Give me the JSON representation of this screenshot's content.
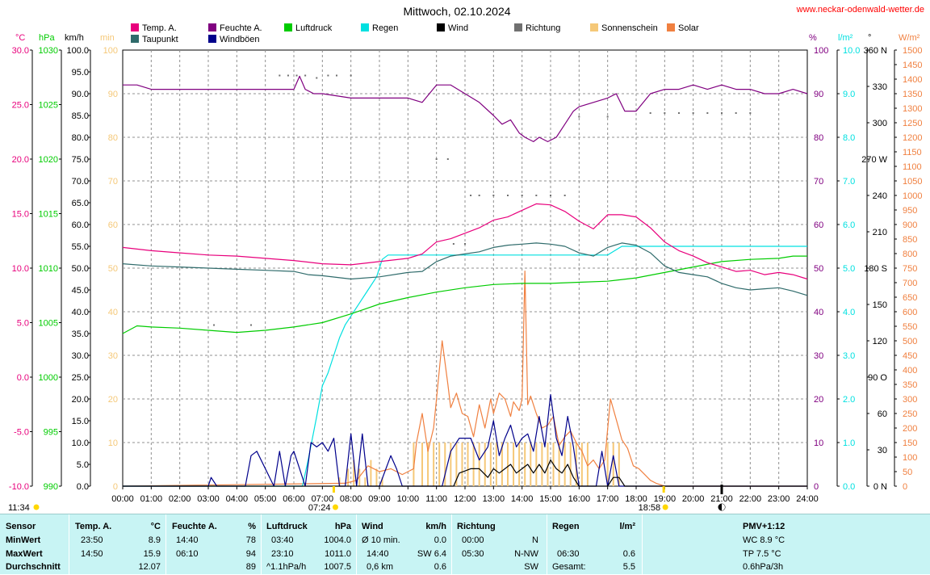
{
  "header": {
    "title": "Mittwoch, 02.10.2024",
    "url": "www.neckar-odenwald-wetter.de"
  },
  "colors": {
    "temp": "#e8007c",
    "feuchte": "#800080",
    "taupunkt": "#2f6b6b",
    "windboeen": "#00008b",
    "luftdruck": "#00cc00",
    "regen": "#00e0e0",
    "wind": "#000000",
    "richtung": "#707070",
    "sonnenschein": "#f5c878",
    "solar": "#f08040"
  },
  "legend": [
    {
      "label": "Temp. A.",
      "color": "#e8007c"
    },
    {
      "label": "Taupunkt",
      "color": "#2f6b6b"
    },
    {
      "label": "Feuchte A.",
      "color": "#800080"
    },
    {
      "label": "Windböen",
      "color": "#00008b"
    },
    {
      "label": "Luftdruck",
      "color": "#00cc00"
    },
    {
      "label": "Regen",
      "color": "#00e0e0"
    },
    {
      "label": "Wind",
      "color": "#000000"
    },
    {
      "label": "Richtung",
      "color": "#707070"
    },
    {
      "label": "Sonnenschein",
      "color": "#f5c878"
    },
    {
      "label": "Solar",
      "color": "#f08040"
    }
  ],
  "chart_data": {
    "type": "line",
    "x_unit": "hour",
    "xlim": [
      0,
      24
    ],
    "x_ticks": [
      "00:00",
      "01:00",
      "02:00",
      "03:00",
      "04:00",
      "05:00",
      "06:00",
      "07:00",
      "08:00",
      "09:00",
      "10:00",
      "11:00",
      "12:00",
      "13:00",
      "14:00",
      "15:00",
      "16:00",
      "17:00",
      "18:00",
      "19:00",
      "20:00",
      "21:00",
      "22:00",
      "23:00",
      "24:00"
    ],
    "axes": {
      "temp": {
        "unit": "°C",
        "range": [
          -10,
          30
        ],
        "ticks": [
          "30.0",
          "25.0",
          "20.0",
          "15.0",
          "10.0",
          "5.0",
          "0.0",
          "-5.0",
          "-10.0"
        ],
        "color": "#e8007c"
      },
      "pressure": {
        "unit": "hPa",
        "range": [
          990,
          1030
        ],
        "ticks": [
          "1030",
          "1025",
          "1020",
          "1015",
          "1010",
          "1005",
          "1000",
          "995",
          "990"
        ],
        "color": "#00cc00"
      },
      "wind": {
        "unit": "km/h",
        "range": [
          0,
          100
        ],
        "ticks": [
          "100.0",
          "95.0",
          "90.0",
          "85.0",
          "80.0",
          "75.0",
          "70.0",
          "65.0",
          "60.0",
          "55.0",
          "50.0",
          "45.0",
          "40.0",
          "35.0",
          "30.0",
          "25.0",
          "20.0",
          "15.0",
          "10.0",
          "5.0",
          "0.0"
        ],
        "color": "#000000"
      },
      "sunshine": {
        "unit": "min",
        "range": [
          0,
          100
        ],
        "ticks": [
          "100",
          "90",
          "80",
          "70",
          "60",
          "50",
          "40",
          "30",
          "20",
          "10",
          "0"
        ],
        "color": "#f5c878"
      },
      "humidity": {
        "unit": "%",
        "range": [
          0,
          100
        ],
        "ticks": [
          "100",
          "90",
          "80",
          "70",
          "60",
          "50",
          "40",
          "30",
          "20",
          "10",
          "0"
        ],
        "color": "#800080"
      },
      "rain": {
        "unit": "l/m²",
        "range": [
          0,
          10
        ],
        "ticks": [
          "10.0",
          "9.0",
          "8.0",
          "7.0",
          "6.0",
          "5.0",
          "4.0",
          "3.0",
          "2.0",
          "1.0",
          "0.0"
        ],
        "color": "#00e0e0"
      },
      "direction": {
        "unit": "°",
        "range": [
          0,
          360
        ],
        "ticks": [
          "360 N",
          "330",
          "300",
          "270 W",
          "240",
          "210",
          "180 S",
          "150",
          "120",
          "90 O",
          "60",
          "30",
          "0 N"
        ],
        "color": "#000000"
      },
      "solar": {
        "unit": "W/m²",
        "range": [
          0,
          1500
        ],
        "ticks": [
          "1500",
          "1450",
          "1400",
          "1350",
          "1300",
          "1250",
          "1200",
          "1150",
          "1100",
          "1050",
          "1000",
          "950",
          "900",
          "850",
          "800",
          "750",
          "700",
          "650",
          "600",
          "550",
          "500",
          "450",
          "400",
          "350",
          "300",
          "250",
          "200",
          "150",
          "100",
          "50",
          "0"
        ],
        "color": "#f08040"
      }
    },
    "sun_events": {
      "sunrise_prev": "11:34",
      "sunrise": "07:24",
      "sunset": "18:58"
    },
    "series": [
      {
        "name": "Temp. A.",
        "axis": "temp",
        "color": "#e8007c",
        "x": [
          0,
          1,
          2,
          3,
          4,
          5,
          6,
          7,
          8,
          9,
          10,
          10.5,
          11,
          11.5,
          12,
          12.5,
          13,
          13.5,
          14,
          14.5,
          15,
          15.5,
          16,
          16.5,
          17,
          17.5,
          18,
          18.5,
          19,
          19.5,
          20,
          20.5,
          21,
          21.5,
          22,
          22.5,
          23,
          23.5,
          24
        ],
        "y": [
          11.9,
          11.6,
          11.4,
          11.2,
          11.1,
          10.9,
          10.7,
          10.4,
          10.3,
          10.6,
          10.9,
          11.3,
          12.4,
          12.7,
          13.2,
          13.7,
          14.4,
          14.7,
          15.3,
          15.9,
          15.8,
          15.2,
          14.3,
          13.6,
          14.9,
          14.9,
          14.7,
          13.7,
          12.4,
          11.6,
          11.1,
          10.5,
          10.1,
          9.7,
          9.8,
          9.4,
          9.6,
          9.4,
          9.0
        ]
      },
      {
        "name": "Taupunkt",
        "axis": "temp",
        "color": "#2f6b6b",
        "x": [
          0,
          1,
          2,
          3,
          4,
          5,
          6,
          6.5,
          7,
          8,
          9,
          10,
          10.5,
          11,
          11.5,
          12,
          12.5,
          13,
          13.5,
          14,
          14.5,
          15,
          15.5,
          16,
          16.5,
          17,
          17.5,
          18,
          18.5,
          19,
          19.5,
          20,
          20.5,
          21,
          21.5,
          22,
          22.5,
          23,
          23.5,
          24
        ],
        "y": [
          10.4,
          10.2,
          10.1,
          10.0,
          9.9,
          9.8,
          9.7,
          9.4,
          9.3,
          9.0,
          9.2,
          9.6,
          9.7,
          10.6,
          11.1,
          11.3,
          11.5,
          11.9,
          12.1,
          12.2,
          12.3,
          12.2,
          12.0,
          11.4,
          11.1,
          11.9,
          12.3,
          12.1,
          11.4,
          10.2,
          9.6,
          9.4,
          9.2,
          8.6,
          8.2,
          8.0,
          8.1,
          8.2,
          7.9,
          7.5
        ]
      },
      {
        "name": "Feuchte A.",
        "axis": "humidity",
        "color": "#800080",
        "x": [
          0,
          0.5,
          1,
          2,
          3,
          4,
          5,
          5.5,
          6,
          6.2,
          6.4,
          6.7,
          7,
          8,
          9,
          10,
          10.5,
          11,
          11.5,
          12,
          12.5,
          13,
          13.3,
          13.6,
          13.9,
          14.1,
          14.4,
          14.6,
          14.9,
          15.2,
          15.5,
          15.8,
          16,
          16.5,
          17,
          17.3,
          17.6,
          18,
          18.5,
          19,
          19.5,
          20,
          20.5,
          21,
          21.5,
          22,
          22.5,
          23,
          23.5,
          24
        ],
        "y": [
          92,
          92,
          91,
          91,
          91,
          91,
          91,
          91,
          91,
          94,
          91,
          90,
          90,
          89,
          89,
          89,
          88,
          92,
          92,
          90,
          88,
          85,
          83,
          84,
          81,
          80,
          79,
          80,
          79,
          80,
          83,
          86,
          87,
          88,
          89,
          90,
          86,
          86,
          90,
          91,
          91,
          92,
          91,
          92,
          91,
          91,
          90,
          90,
          91,
          90
        ]
      },
      {
        "name": "Luftdruck",
        "axis": "pressure",
        "color": "#00cc00",
        "x": [
          0,
          0.5,
          1,
          2,
          3,
          4,
          5,
          6,
          7,
          8,
          9,
          10,
          11,
          12,
          13,
          14,
          15,
          16,
          17,
          18,
          19,
          20,
          21,
          22,
          23,
          23.5,
          24
        ],
        "y": [
          1004.0,
          1004.7,
          1004.6,
          1004.5,
          1004.3,
          1004.1,
          1004.3,
          1004.6,
          1005.0,
          1005.8,
          1006.7,
          1007.3,
          1007.8,
          1008.2,
          1008.5,
          1008.6,
          1008.6,
          1008.7,
          1008.8,
          1009.1,
          1009.6,
          1010.1,
          1010.6,
          1010.8,
          1010.9,
          1011.1,
          1011.1
        ]
      },
      {
        "name": "Regen",
        "axis": "rain",
        "color": "#00e0e0",
        "x": [
          0,
          6.3,
          6.5,
          6.8,
          7,
          7.2,
          7.4,
          7.6,
          7.8,
          8,
          8.3,
          8.6,
          8.9,
          9.1,
          9.3,
          10,
          12,
          15,
          17,
          17.5,
          24
        ],
        "y": [
          0.0,
          0.0,
          0.6,
          1.6,
          2.3,
          2.6,
          3.0,
          3.4,
          3.7,
          3.9,
          4.2,
          4.5,
          4.8,
          5.2,
          5.3,
          5.3,
          5.3,
          5.3,
          5.3,
          5.5,
          5.5
        ]
      },
      {
        "name": "Windböen",
        "axis": "wind",
        "color": "#00008b",
        "x": [
          0,
          3.0,
          3.1,
          3.3,
          4.3,
          4.5,
          4.7,
          5.3,
          5.5,
          5.7,
          5.9,
          6.0,
          6.2,
          6.4,
          6.6,
          6.8,
          7.0,
          7.2,
          7.4,
          7.6,
          7.8,
          8.0,
          8.2,
          8.4,
          8.6,
          9.0,
          9.4,
          9.6,
          9.8,
          10.0,
          11.2,
          11.5,
          11.8,
          12.2,
          12.5,
          12.8,
          13.0,
          13.2,
          13.4,
          13.6,
          13.8,
          14.0,
          14.2,
          14.4,
          14.6,
          14.8,
          15.0,
          15.2,
          15.4,
          15.6,
          15.8,
          16.0,
          16.3,
          16.6,
          16.8,
          17.0,
          17.2,
          17.4,
          17.6,
          24
        ],
        "y": [
          0,
          0,
          2,
          0,
          0,
          7,
          8,
          0,
          8,
          0,
          7,
          8,
          4,
          0,
          10,
          9,
          10,
          8,
          11,
          0,
          0,
          12,
          0,
          12,
          0,
          0,
          7,
          4,
          0,
          0,
          0,
          8,
          11,
          11,
          6,
          9,
          15,
          7,
          11,
          14,
          9,
          11,
          12,
          8,
          16,
          9,
          21,
          11,
          7,
          16,
          9,
          0,
          0,
          0,
          8,
          0,
          7,
          0,
          0,
          0
        ]
      },
      {
        "name": "Wind",
        "axis": "wind",
        "color": "#000000",
        "x": [
          0,
          11.6,
          11.8,
          12.2,
          12.5,
          12.8,
          13.0,
          13.2,
          13.4,
          13.6,
          13.8,
          14.0,
          14.2,
          14.4,
          14.6,
          14.8,
          15.0,
          15.2,
          15.4,
          15.6,
          15.8,
          16.0,
          17.0,
          17.2,
          17.4,
          17.6,
          24
        ],
        "y": [
          0,
          0,
          3,
          4,
          4,
          2,
          4,
          3,
          4,
          5,
          3,
          4,
          5,
          3,
          5,
          3,
          6,
          4,
          3,
          5,
          2,
          0,
          0,
          2,
          2,
          0,
          0
        ]
      },
      {
        "name": "Solar",
        "axis": "solar",
        "color": "#f08040",
        "x": [
          0,
          7.8,
          8.2,
          8.6,
          9.0,
          9.4,
          9.8,
          10.2,
          10.3,
          10.5,
          10.7,
          10.9,
          11.0,
          11.2,
          11.4,
          11.5,
          11.7,
          11.9,
          12.1,
          12.3,
          12.5,
          12.7,
          12.9,
          13.0,
          13.2,
          13.4,
          13.6,
          13.7,
          13.9,
          14.0,
          14.1,
          14.2,
          14.3,
          14.5,
          14.7,
          14.9,
          15.1,
          15.3,
          15.5,
          15.7,
          15.9,
          16.1,
          16.3,
          16.5,
          16.7,
          16.9,
          17.1,
          17.3,
          17.5,
          17.7,
          17.9,
          18.1,
          18.3,
          18.5,
          18.7,
          19.0,
          24
        ],
        "y": [
          0,
          10,
          20,
          70,
          50,
          60,
          40,
          60,
          150,
          250,
          120,
          200,
          300,
          500,
          350,
          270,
          320,
          250,
          240,
          170,
          280,
          200,
          300,
          250,
          320,
          300,
          240,
          290,
          260,
          300,
          740,
          280,
          310,
          250,
          200,
          210,
          240,
          140,
          170,
          190,
          150,
          120,
          70,
          90,
          60,
          90,
          300,
          230,
          160,
          130,
          70,
          60,
          40,
          20,
          10,
          0,
          0
        ]
      },
      {
        "name": "Richtung",
        "axis": "direction",
        "color": "#707070",
        "style": "dots",
        "x": [
          5.5,
          5.8,
          6.1,
          6.4,
          6.8,
          7.2,
          7.5,
          8.0,
          4.5,
          3.2,
          11.0,
          11.4,
          12.2,
          12.5,
          13.0,
          13.5,
          14.0,
          14.5,
          15.0,
          15.5,
          16.0,
          17.0,
          18.5,
          19.0,
          19.5,
          20.0,
          20.5,
          21.0,
          21.5,
          22.0,
          11.6,
          12.0
        ],
        "y": [
          339,
          339,
          339,
          339,
          337,
          339,
          339,
          339,
          133,
          133,
          270,
          270,
          240,
          240,
          240,
          240,
          240,
          240,
          240,
          240,
          305,
          305,
          308,
          308,
          308,
          308,
          308,
          308,
          308,
          308,
          200,
          200
        ]
      },
      {
        "name": "Sonnenschein",
        "axis": "sunshine",
        "color": "#f5c878",
        "style": "bars",
        "x": [
          7.6,
          7.9,
          8.1,
          8.3,
          8.5,
          8.7,
          8.9,
          9.1,
          10.2,
          10.5,
          10.7,
          10.9,
          11.1,
          11.3,
          11.5,
          11.7,
          11.9,
          12.1,
          12.3,
          12.5,
          12.7,
          12.9,
          13.1,
          13.3,
          13.5,
          13.7,
          13.9,
          14.1,
          14.3,
          14.5,
          14.7,
          14.9,
          15.1,
          15.3,
          15.5,
          15.7,
          15.9,
          16.1,
          16.3,
          17.0,
          17.2,
          17.4
        ],
        "y": [
          2,
          4,
          6,
          4,
          2,
          6,
          4,
          2,
          10,
          10,
          10,
          10,
          10,
          10,
          10,
          10,
          10,
          10,
          10,
          10,
          10,
          10,
          10,
          10,
          10,
          10,
          10,
          10,
          10,
          10,
          10,
          10,
          10,
          10,
          10,
          10,
          10,
          10,
          10,
          10,
          10,
          10
        ]
      }
    ]
  },
  "stats": {
    "sensor": {
      "header": "Sensor",
      "rows": [
        "MinWert",
        "MaxWert",
        "Durchschnitt"
      ]
    },
    "temp": {
      "header": "Temp. A.",
      "unit": "°C",
      "min_time": "23:50",
      "min_value": "8.9",
      "max_time": "14:50",
      "max_value": "15.9",
      "avg": "12.07"
    },
    "feuchte": {
      "header": "Feuchte A.",
      "unit": "%",
      "min_time": "14:40",
      "min_value": "78",
      "max_time": "06:10",
      "max_value": "94",
      "avg": "89"
    },
    "luftdruck": {
      "header": "Luftdruck",
      "unit": "hPa",
      "min_time": "03:40",
      "min_value": "1004.0",
      "max_time": "23:10",
      "max_value": "1011.0",
      "avg_label": "^1.1hPa/h",
      "avg": "1007.5"
    },
    "wind": {
      "header": "Wind",
      "unit": "km/h",
      "row1_label": "Ø 10 min.",
      "row1_value": "0.0",
      "row2_label": "14:40",
      "row2_value": "SW 6.4",
      "row3_label": "0,6 km",
      "row3_value": "0.6"
    },
    "richtung": {
      "header": "Richtung",
      "row1_time": "00:00",
      "row1_value": "N",
      "row2_time": "05:30",
      "row2_value": "N-NW",
      "row3_value": "SW"
    },
    "regen": {
      "header": "Regen",
      "unit": "l/m²",
      "row2_time": "06:30",
      "row2_value": "0.6",
      "row3_label": "Gesamt:",
      "row3_value": "5.5"
    },
    "pmv": {
      "header": "PMV+1:12",
      "wc": "WC 8.9 °C",
      "tp": "TP 7.5 °C",
      "trend": "0.6hPa/3h"
    }
  }
}
